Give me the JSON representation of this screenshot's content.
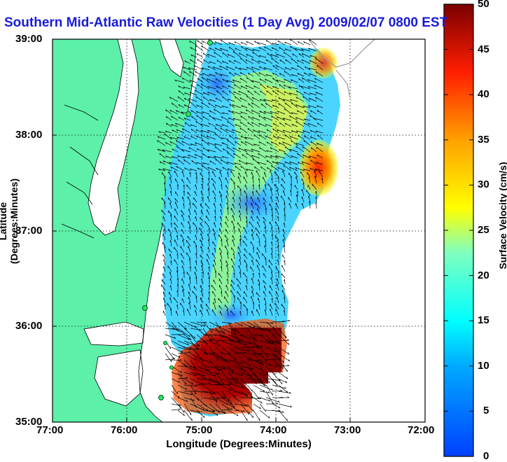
{
  "title": "Southern Mid-Atlantic Raw Velocities (1 Day Avg) 2009/02/07 0800 EST",
  "x_axis": {
    "label": "Longitude (Degrees:Minutes)",
    "ticks": [
      "77:00",
      "76:00",
      "75:00",
      "74:00",
      "73:00",
      "72:00"
    ]
  },
  "y_axis": {
    "label": "Latitude (Degrees:Minutes)",
    "ticks": [
      "39:00",
      "38:00",
      "37:00",
      "36:00",
      "35:00"
    ]
  },
  "colorbar": {
    "label": "Surface Velocity (cm/s)",
    "ticks": [
      "50",
      "45",
      "40",
      "35",
      "30",
      "25",
      "20",
      "15",
      "10",
      "5",
      "0"
    ],
    "range": [
      0,
      50
    ]
  },
  "map": {
    "extent": {
      "lon": [
        -77,
        -72
      ],
      "lat": [
        35,
        39
      ]
    },
    "grid": true,
    "colors": {
      "land": "#5cf0a8",
      "water": "#ffffff",
      "low": "#1e64ff",
      "mid": "#3ee6e6",
      "high": "#7a0000"
    },
    "high_velocity_areas": [
      "near 35:30 N 74:30 W",
      "near 37:30 N 73:30 W"
    ],
    "hf_radar_sites": 6
  }
}
